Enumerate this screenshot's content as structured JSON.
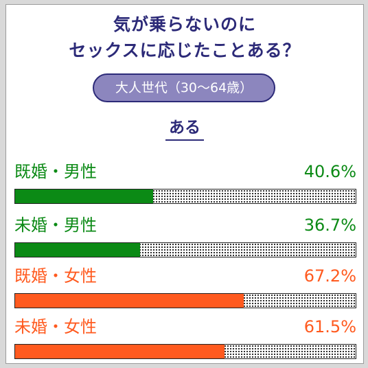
{
  "title_lines": [
    "気が乗らないのに",
    "セックスに応じたことある？"
  ],
  "pill_label": "大人世代（30〜64歳）",
  "subheading": "ある",
  "chart_data": {
    "type": "bar",
    "orientation": "horizontal",
    "title": "気が乗らないのに セックスに応じたことある？",
    "subtitle": "大人世代（30〜64歳）",
    "series_label": "ある",
    "unit": "%",
    "xlim": [
      0,
      100
    ],
    "grid": false,
    "legend": "none",
    "categories": [
      "既婚・男性",
      "未婚・男性",
      "既婚・女性",
      "未婚・女性"
    ],
    "values": [
      40.6,
      36.7,
      67.2,
      61.5
    ],
    "value_labels": [
      "40.6%",
      "36.7%",
      "67.2%",
      "61.5%"
    ],
    "colors": [
      "#0b8a15",
      "#0b8a15",
      "#ff5a1f",
      "#ff5a1f"
    ]
  }
}
